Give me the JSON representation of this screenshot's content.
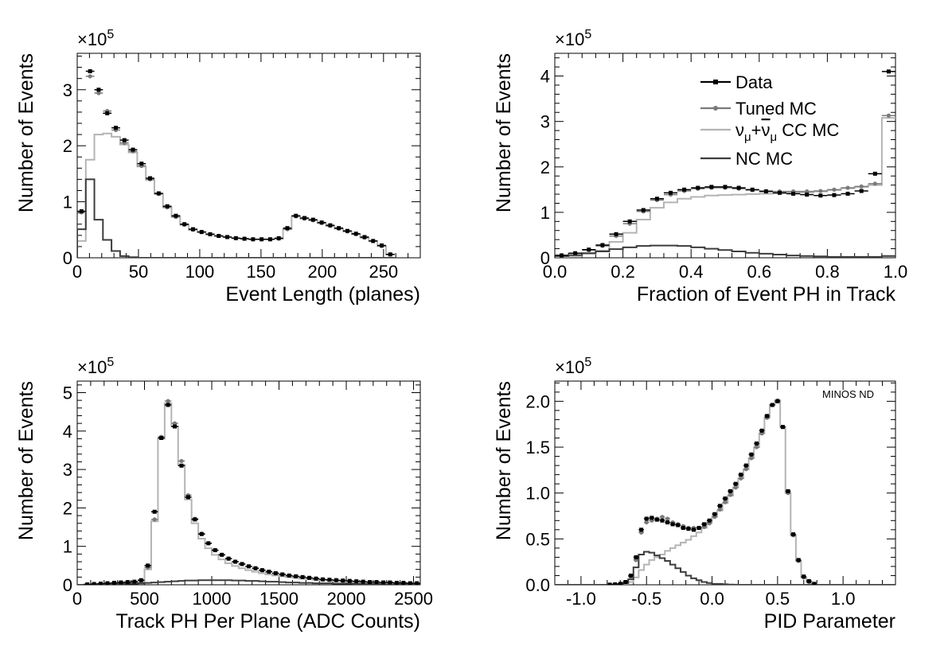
{
  "colors": {
    "data": "#000000",
    "tuned_mc": "#7a7a7a",
    "cc_mc": "#b4b4b4",
    "nc_mc": "#3c3c3c"
  },
  "legend": {
    "entries": [
      {
        "key": "data",
        "label": "Data"
      },
      {
        "key": "tuned",
        "label": "Tuned MC"
      },
      {
        "key": "cc",
        "label": "ν",
        "sub": "μ",
        "label2": "+",
        "label3": "ν",
        "sub2": "μ",
        "label4": " CC MC"
      },
      {
        "key": "nc",
        "label": "NC MC"
      }
    ]
  },
  "chart_data": [
    {
      "type": "histogram",
      "xlabel": "Event Length (planes)",
      "ylabel": "Number of Events",
      "yscale_label": "×10",
      "yscale_exp": "5",
      "xlim": [
        0,
        280
      ],
      "ylim": [
        0,
        3.65
      ],
      "xticks": [
        0,
        50,
        100,
        150,
        200,
        250
      ],
      "xtick_labels": [
        "0",
        "50",
        "100",
        "150",
        "200",
        "250"
      ],
      "yticks": [
        0,
        1,
        2,
        3
      ],
      "ytick_labels": [
        "0",
        "1",
        "2",
        "3"
      ],
      "bin_width": 7,
      "bin_start": 0,
      "data": [
        0.83,
        3.33,
        3.0,
        2.58,
        2.32,
        2.1,
        1.93,
        1.68,
        1.42,
        1.15,
        0.92,
        0.75,
        0.6,
        0.51,
        0.46,
        0.42,
        0.39,
        0.37,
        0.35,
        0.34,
        0.33,
        0.33,
        0.33,
        0.35,
        0.53,
        0.75,
        0.71,
        0.68,
        0.63,
        0.58,
        0.53,
        0.48,
        0.43,
        0.37,
        0.3,
        0.22,
        0.06
      ],
      "tuned_mc": [
        0.81,
        3.24,
        2.94,
        2.62,
        2.28,
        2.05,
        1.9,
        1.64,
        1.4,
        1.14,
        0.9,
        0.73,
        0.59,
        0.5,
        0.46,
        0.42,
        0.39,
        0.37,
        0.35,
        0.34,
        0.33,
        0.33,
        0.33,
        0.34,
        0.51,
        0.74,
        0.7,
        0.67,
        0.62,
        0.57,
        0.52,
        0.47,
        0.42,
        0.36,
        0.3,
        0.21,
        0.06
      ],
      "cc_mc": [
        0.3,
        1.75,
        2.2,
        2.22,
        2.16,
        2.02,
        1.88,
        1.63,
        1.39,
        1.14,
        0.9,
        0.73,
        0.59,
        0.5,
        0.46,
        0.42,
        0.39,
        0.37,
        0.35,
        0.34,
        0.33,
        0.33,
        0.33,
        0.34,
        0.51,
        0.74,
        0.7,
        0.67,
        0.62,
        0.57,
        0.52,
        0.47,
        0.42,
        0.36,
        0.3,
        0.21,
        0.06
      ],
      "nc_mc": [
        0.51,
        1.4,
        0.68,
        0.32,
        0.12,
        0.03,
        0.01,
        0,
        0,
        0,
        0,
        0,
        0,
        0,
        0,
        0,
        0,
        0,
        0,
        0,
        0,
        0,
        0,
        0,
        0,
        0,
        0,
        0,
        0,
        0,
        0,
        0,
        0,
        0,
        0,
        0,
        0
      ]
    },
    {
      "type": "histogram",
      "xlabel": "Fraction of Event PH in Track",
      "ylabel": "Number of Events",
      "yscale_label": "×10",
      "yscale_exp": "5",
      "xlim": [
        0,
        1.0
      ],
      "ylim": [
        0,
        4.5
      ],
      "xticks": [
        0,
        0.2,
        0.4,
        0.6,
        0.8,
        1.0
      ],
      "xtick_labels": [
        "0.0",
        "0.2",
        "0.4",
        "0.6",
        "0.8",
        "1.0"
      ],
      "yticks": [
        0,
        1,
        2,
        3,
        4
      ],
      "ytick_labels": [
        "0",
        "1",
        "2",
        "3",
        "4"
      ],
      "bin_width": 0.04,
      "bin_start": 0,
      "data": [
        0.05,
        0.1,
        0.18,
        0.28,
        0.52,
        0.8,
        1.05,
        1.3,
        1.43,
        1.5,
        1.54,
        1.56,
        1.56,
        1.54,
        1.5,
        1.46,
        1.43,
        1.41,
        1.39,
        1.37,
        1.38,
        1.41,
        1.47,
        1.85,
        4.1
      ],
      "tuned_mc": [
        0.06,
        0.1,
        0.17,
        0.26,
        0.48,
        0.75,
        1.02,
        1.27,
        1.39,
        1.47,
        1.52,
        1.54,
        1.54,
        1.52,
        1.49,
        1.47,
        1.46,
        1.46,
        1.46,
        1.47,
        1.5,
        1.54,
        1.57,
        1.63,
        3.13
      ],
      "cc_mc": [
        0.02,
        0.04,
        0.09,
        0.16,
        0.35,
        0.55,
        0.84,
        1.1,
        1.22,
        1.3,
        1.34,
        1.37,
        1.38,
        1.39,
        1.4,
        1.41,
        1.42,
        1.43,
        1.44,
        1.46,
        1.49,
        1.53,
        1.56,
        1.6,
        3.08
      ],
      "nc_mc": [
        0.04,
        0.06,
        0.1,
        0.14,
        0.19,
        0.23,
        0.26,
        0.27,
        0.27,
        0.26,
        0.23,
        0.2,
        0.17,
        0.14,
        0.11,
        0.09,
        0.07,
        0.05,
        0.04,
        0.03,
        0.02,
        0.02,
        0.02,
        0.02,
        0.04
      ]
    },
    {
      "type": "histogram",
      "xlabel": "Track PH Per Plane (ADC Counts)",
      "ylabel": "Number of Events",
      "yscale_label": "×10",
      "yscale_exp": "5",
      "xlim": [
        0,
        2550
      ],
      "ylim": [
        0,
        5.3
      ],
      "xticks": [
        0,
        500,
        1000,
        1500,
        2000,
        2500
      ],
      "xtick_labels": [
        "0",
        "500",
        "1000",
        "1500",
        "2000",
        "2500"
      ],
      "yticks": [
        0,
        1,
        2,
        3,
        4,
        5
      ],
      "ytick_labels": [
        "0",
        "1",
        "2",
        "3",
        "4",
        "5"
      ],
      "bin_width": 50,
      "bin_start": 0,
      "data": [
        0,
        0.01,
        0.02,
        0.03,
        0.04,
        0.05,
        0.06,
        0.07,
        0.08,
        0.12,
        0.5,
        1.9,
        3.82,
        4.68,
        4.12,
        3.1,
        2.28,
        1.7,
        1.32,
        1.08,
        0.9,
        0.78,
        0.68,
        0.6,
        0.54,
        0.48,
        0.43,
        0.38,
        0.34,
        0.3,
        0.27,
        0.24,
        0.22,
        0.2,
        0.18,
        0.16,
        0.14,
        0.13,
        0.12,
        0.11,
        0.1,
        0.09,
        0.08,
        0.07,
        0.07,
        0.06,
        0.06,
        0.05,
        0.05,
        0.04,
        0.04
      ],
      "tuned_mc": [
        0,
        0.01,
        0.02,
        0.03,
        0.04,
        0.05,
        0.06,
        0.07,
        0.08,
        0.11,
        0.45,
        1.7,
        3.85,
        4.78,
        4.2,
        3.22,
        2.33,
        1.72,
        1.33,
        1.08,
        0.9,
        0.78,
        0.68,
        0.6,
        0.54,
        0.48,
        0.43,
        0.38,
        0.34,
        0.3,
        0.27,
        0.24,
        0.22,
        0.2,
        0.18,
        0.16,
        0.14,
        0.13,
        0.12,
        0.11,
        0.1,
        0.09,
        0.08,
        0.07,
        0.07,
        0.06,
        0.06,
        0.05,
        0.05,
        0.04,
        0.04
      ],
      "cc_mc": [
        0,
        0.01,
        0.01,
        0.02,
        0.02,
        0.02,
        0.03,
        0.03,
        0.04,
        0.06,
        0.4,
        1.65,
        3.8,
        4.72,
        4.12,
        3.12,
        2.22,
        1.6,
        1.2,
        0.95,
        0.78,
        0.66,
        0.56,
        0.49,
        0.43,
        0.38,
        0.34,
        0.3,
        0.27,
        0.24,
        0.22,
        0.2,
        0.18,
        0.16,
        0.15,
        0.13,
        0.12,
        0.11,
        0.1,
        0.09,
        0.08,
        0.07,
        0.07,
        0.06,
        0.06,
        0.05,
        0.05,
        0.04,
        0.04,
        0.04,
        0.03
      ],
      "nc_mc": [
        0,
        0.0,
        0.01,
        0.01,
        0.01,
        0.02,
        0.02,
        0.03,
        0.03,
        0.04,
        0.05,
        0.06,
        0.07,
        0.08,
        0.09,
        0.1,
        0.11,
        0.11,
        0.12,
        0.12,
        0.12,
        0.12,
        0.12,
        0.11,
        0.11,
        0.1,
        0.1,
        0.09,
        0.08,
        0.08,
        0.07,
        0.06,
        0.06,
        0.05,
        0.05,
        0.04,
        0.04,
        0.04,
        0.03,
        0.03,
        0.03,
        0.02,
        0.02,
        0.02,
        0.02,
        0.01,
        0.01,
        0.01,
        0.01,
        0.01,
        0.01
      ]
    },
    {
      "type": "histogram",
      "xlabel": "PID Parameter",
      "ylabel": "Number of Events",
      "yscale_label": "×10",
      "yscale_exp": "5",
      "annotation": "MINOS ND",
      "xlim": [
        -1.2,
        1.4
      ],
      "ylim": [
        0,
        2.22
      ],
      "xticks": [
        -1.0,
        -0.5,
        0.0,
        0.5,
        1.0
      ],
      "xtick_labels": [
        "-1.0",
        "-0.5",
        "0.0",
        "0.5",
        "1.0"
      ],
      "yticks": [
        0,
        0.5,
        1.0,
        1.5,
        2.0
      ],
      "ytick_labels": [
        "0.0",
        "0.5",
        "1.0",
        "1.5",
        "2.0"
      ],
      "bin_width": 0.04,
      "bin_start": -1.2,
      "data": [
        0,
        0,
        0,
        0,
        0,
        0,
        0,
        0,
        0,
        0,
        0.001,
        0.005,
        0.01,
        0.03,
        0.1,
        0.3,
        0.6,
        0.72,
        0.73,
        0.71,
        0.7,
        0.68,
        0.66,
        0.65,
        0.62,
        0.61,
        0.6,
        0.62,
        0.66,
        0.7,
        0.77,
        0.86,
        0.94,
        1.02,
        1.1,
        1.2,
        1.3,
        1.42,
        1.54,
        1.68,
        1.84,
        1.96,
        2.0,
        1.72,
        1.02,
        0.55,
        0.27,
        0.09,
        0.04,
        0.01,
        0,
        0,
        0,
        0,
        0,
        0,
        0,
        0,
        0,
        0,
        0,
        0,
        0,
        0,
        0
      ],
      "tuned_mc": [
        0,
        0,
        0,
        0,
        0,
        0,
        0,
        0,
        0,
        0,
        0.001,
        0.004,
        0.01,
        0.03,
        0.09,
        0.27,
        0.57,
        0.68,
        0.7,
        0.72,
        0.74,
        0.72,
        0.68,
        0.66,
        0.64,
        0.62,
        0.62,
        0.62,
        0.63,
        0.67,
        0.74,
        0.82,
        0.9,
        0.98,
        1.06,
        1.16,
        1.26,
        1.38,
        1.5,
        1.65,
        1.82,
        1.96,
        2.01,
        1.72,
        1.0,
        0.54,
        0.26,
        0.08,
        0.03,
        0.01,
        0,
        0,
        0,
        0,
        0,
        0,
        0,
        0,
        0,
        0,
        0,
        0,
        0,
        0,
        0
      ],
      "cc_mc": [
        0,
        0,
        0,
        0,
        0,
        0,
        0,
        0,
        0,
        0,
        0,
        0.001,
        0.003,
        0.01,
        0.03,
        0.08,
        0.16,
        0.22,
        0.27,
        0.3,
        0.33,
        0.37,
        0.4,
        0.43,
        0.46,
        0.49,
        0.53,
        0.57,
        0.62,
        0.68,
        0.74,
        0.81,
        0.89,
        0.97,
        1.06,
        1.16,
        1.26,
        1.38,
        1.5,
        1.65,
        1.82,
        1.96,
        2.01,
        1.72,
        1.0,
        0.54,
        0.26,
        0.08,
        0.03,
        0.01,
        0,
        0,
        0,
        0,
        0,
        0,
        0,
        0,
        0,
        0,
        0,
        0,
        0,
        0,
        0
      ],
      "nc_mc": [
        0,
        0,
        0,
        0,
        0,
        0,
        0,
        0,
        0,
        0,
        0.001,
        0.003,
        0.008,
        0.02,
        0.06,
        0.19,
        0.33,
        0.36,
        0.35,
        0.32,
        0.29,
        0.26,
        0.22,
        0.18,
        0.14,
        0.1,
        0.07,
        0.05,
        0.03,
        0.02,
        0.01,
        0.01,
        0.005,
        0.002,
        0.001,
        0,
        0,
        0,
        0,
        0,
        0,
        0,
        0,
        0,
        0,
        0,
        0,
        0,
        0,
        0,
        0,
        0,
        0,
        0,
        0,
        0,
        0,
        0,
        0,
        0,
        0,
        0,
        0,
        0,
        0
      ]
    }
  ]
}
